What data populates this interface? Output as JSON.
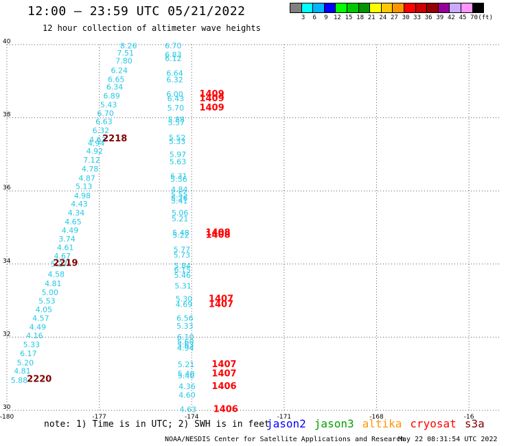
{
  "header": {
    "title": "12:00 – 23:59 UTC 05/21/2022",
    "subtitle": "12 hour collection of altimeter wave heights"
  },
  "colorbar": {
    "colors": [
      "#808080",
      "#00ffff",
      "#00b4ff",
      "#0000ff",
      "#00ff00",
      "#00c800",
      "#009600",
      "#ffff00",
      "#ffc800",
      "#ff9600",
      "#ff0000",
      "#c80000",
      "#960000",
      "#960096",
      "#c8aaff",
      "#ff96ff",
      "#000000"
    ],
    "labels": [
      "3",
      "6",
      "9",
      "12",
      "15",
      "18",
      "21",
      "24",
      "27",
      "30",
      "33",
      "36",
      "39",
      "42",
      "45",
      "70",
      "(ft)"
    ]
  },
  "chart_data": {
    "type": "scatter",
    "x_ticks": [
      "-180",
      "-177",
      "-174",
      "-171",
      "-168",
      "-16"
    ],
    "y_ticks": [
      "40",
      "38",
      "36",
      "34",
      "32",
      "30"
    ],
    "xlim": [
      -180,
      -164
    ],
    "ylim": [
      30,
      40
    ],
    "wave_color": "#22c8e6",
    "track1": [
      {
        "lon": -176.05,
        "lat": 39.9,
        "v": "8.26"
      },
      {
        "lon": -176.15,
        "lat": 39.7,
        "v": "7.51"
      },
      {
        "lon": -176.2,
        "lat": 39.48,
        "v": "7.80"
      },
      {
        "lon": -176.35,
        "lat": 39.22,
        "v": "6.24"
      },
      {
        "lon": -176.45,
        "lat": 38.98,
        "v": "6.65"
      },
      {
        "lon": -176.5,
        "lat": 38.77,
        "v": "6.34"
      },
      {
        "lon": -176.6,
        "lat": 38.53,
        "v": "6.89"
      },
      {
        "lon": -176.7,
        "lat": 38.28,
        "v": "5.43"
      },
      {
        "lon": -176.8,
        "lat": 38.05,
        "v": "6.70"
      },
      {
        "lon": -176.85,
        "lat": 37.82,
        "v": "6.63"
      },
      {
        "lon": -176.95,
        "lat": 37.58,
        "v": "6.32"
      },
      {
        "lon": -177.05,
        "lat": 37.33,
        "v": "4.63"
      },
      {
        "lon": -177.1,
        "lat": 37.23,
        "v": "4.94"
      },
      {
        "lon": -177.15,
        "lat": 37.02,
        "v": "4.92"
      },
      {
        "lon": -177.25,
        "lat": 36.77,
        "v": "7.12"
      },
      {
        "lon": -177.3,
        "lat": 36.53,
        "v": "4.78"
      },
      {
        "lon": -177.4,
        "lat": 36.28,
        "v": "4.87"
      },
      {
        "lon": -177.5,
        "lat": 36.05,
        "v": "5.13"
      },
      {
        "lon": -177.55,
        "lat": 35.8,
        "v": "4.98"
      },
      {
        "lon": -177.65,
        "lat": 35.57,
        "v": "4.43"
      },
      {
        "lon": -177.75,
        "lat": 35.33,
        "v": "4.34"
      },
      {
        "lon": -177.85,
        "lat": 35.08,
        "v": "4.65"
      },
      {
        "lon": -177.95,
        "lat": 34.85,
        "v": "4.49"
      },
      {
        "lon": -178.05,
        "lat": 34.62,
        "v": "3.74"
      },
      {
        "lon": -178.1,
        "lat": 34.38,
        "v": "4.61"
      },
      {
        "lon": -178.2,
        "lat": 34.15,
        "v": "4.67"
      },
      {
        "lon": -178.3,
        "lat": 33.93,
        "v": "5.27"
      },
      {
        "lon": -178.4,
        "lat": 33.65,
        "v": "4.58"
      },
      {
        "lon": -178.5,
        "lat": 33.4,
        "v": "4.81"
      },
      {
        "lon": -178.6,
        "lat": 33.15,
        "v": "5.00"
      },
      {
        "lon": -178.7,
        "lat": 32.92,
        "v": "5.53"
      },
      {
        "lon": -178.8,
        "lat": 32.68,
        "v": "4.05"
      },
      {
        "lon": -178.9,
        "lat": 32.45,
        "v": "4.57"
      },
      {
        "lon": -179.0,
        "lat": 32.2,
        "v": "4.49"
      },
      {
        "lon": -179.1,
        "lat": 31.97,
        "v": "4.16"
      },
      {
        "lon": -179.2,
        "lat": 31.73,
        "v": "5.33"
      },
      {
        "lon": -179.3,
        "lat": 31.48,
        "v": "6.17"
      },
      {
        "lon": -179.4,
        "lat": 31.23,
        "v": "5.20"
      },
      {
        "lon": -179.5,
        "lat": 31.0,
        "v": "4.81"
      },
      {
        "lon": -179.6,
        "lat": 30.75,
        "v": "5.88"
      }
    ],
    "track2": [
      {
        "lon": -174.6,
        "lat": 39.9,
        "v": "6.70"
      },
      {
        "lon": -174.6,
        "lat": 39.65,
        "v": "6.83"
      },
      {
        "lon": -174.6,
        "lat": 39.55,
        "v": "6.12"
      },
      {
        "lon": -174.55,
        "lat": 39.15,
        "v": "6.64"
      },
      {
        "lon": -174.55,
        "lat": 38.97,
        "v": "6.32"
      },
      {
        "lon": -174.55,
        "lat": 38.57,
        "v": "6.00"
      },
      {
        "lon": -174.52,
        "lat": 38.45,
        "v": "6.43"
      },
      {
        "lon": -174.52,
        "lat": 38.2,
        "v": "5.70"
      },
      {
        "lon": -174.5,
        "lat": 37.88,
        "v": "5.88"
      },
      {
        "lon": -174.5,
        "lat": 37.8,
        "v": "5.57"
      },
      {
        "lon": -174.47,
        "lat": 37.38,
        "v": "5.52"
      },
      {
        "lon": -174.47,
        "lat": 37.28,
        "v": "5.33"
      },
      {
        "lon": -174.45,
        "lat": 36.92,
        "v": "5.97"
      },
      {
        "lon": -174.45,
        "lat": 36.73,
        "v": "5.63"
      },
      {
        "lon": -174.42,
        "lat": 36.33,
        "v": "6.31"
      },
      {
        "lon": -174.42,
        "lat": 36.25,
        "v": "5.56"
      },
      {
        "lon": -174.4,
        "lat": 35.97,
        "v": "4.84"
      },
      {
        "lon": -174.4,
        "lat": 35.83,
        "v": "5.55"
      },
      {
        "lon": -174.4,
        "lat": 35.73,
        "v": "5.26"
      },
      {
        "lon": -174.4,
        "lat": 35.66,
        "v": "5.41"
      },
      {
        "lon": -174.38,
        "lat": 35.33,
        "v": "5.06"
      },
      {
        "lon": -174.38,
        "lat": 35.17,
        "v": "5.21"
      },
      {
        "lon": -174.35,
        "lat": 34.78,
        "v": "5.48"
      },
      {
        "lon": -174.35,
        "lat": 34.72,
        "v": "5.22"
      },
      {
        "lon": -174.32,
        "lat": 34.32,
        "v": "5.77"
      },
      {
        "lon": -174.32,
        "lat": 34.17,
        "v": "5.73"
      },
      {
        "lon": -174.3,
        "lat": 33.88,
        "v": "5.84"
      },
      {
        "lon": -174.3,
        "lat": 33.77,
        "v": "6.15"
      },
      {
        "lon": -174.3,
        "lat": 33.62,
        "v": "5.46"
      },
      {
        "lon": -174.28,
        "lat": 33.33,
        "v": "5.31"
      },
      {
        "lon": -174.25,
        "lat": 32.97,
        "v": "5.30"
      },
      {
        "lon": -174.25,
        "lat": 32.82,
        "v": "4.69"
      },
      {
        "lon": -174.22,
        "lat": 32.45,
        "v": "6.56"
      },
      {
        "lon": -174.22,
        "lat": 32.23,
        "v": "5.33"
      },
      {
        "lon": -174.2,
        "lat": 31.93,
        "v": "6.10"
      },
      {
        "lon": -174.2,
        "lat": 31.8,
        "v": "5.60"
      },
      {
        "lon": -174.2,
        "lat": 31.72,
        "v": "5.63"
      },
      {
        "lon": -174.2,
        "lat": 31.63,
        "v": "4.94"
      },
      {
        "lon": -174.18,
        "lat": 31.18,
        "v": "5.21"
      },
      {
        "lon": -174.18,
        "lat": 30.93,
        "v": "5.40"
      },
      {
        "lon": -174.18,
        "lat": 30.87,
        "v": "5.40"
      },
      {
        "lon": -174.15,
        "lat": 30.58,
        "v": "4.36"
      },
      {
        "lon": -174.15,
        "lat": 30.35,
        "v": "4.60"
      },
      {
        "lon": -174.12,
        "lat": 29.95,
        "v": "4.63"
      }
    ],
    "time_labels": [
      {
        "lon": -176.9,
        "lat": 37.35,
        "t": "2218",
        "color": "#800000"
      },
      {
        "lon": -178.5,
        "lat": 33.95,
        "t": "2219",
        "color": "#800000"
      },
      {
        "lon": -179.35,
        "lat": 30.78,
        "t": "2220",
        "color": "#800000"
      },
      {
        "lon": -173.75,
        "lat": 38.57,
        "t": "1409",
        "color": "#ff0000"
      },
      {
        "lon": -173.75,
        "lat": 38.45,
        "t": "1409",
        "color": "#ff0000"
      },
      {
        "lon": -173.75,
        "lat": 38.2,
        "t": "1409",
        "color": "#ff0000"
      },
      {
        "lon": -173.55,
        "lat": 34.78,
        "t": "1408",
        "color": "#ff0000"
      },
      {
        "lon": -173.55,
        "lat": 34.72,
        "t": "1408",
        "color": "#ff0000"
      },
      {
        "lon": -173.45,
        "lat": 32.97,
        "t": "1407",
        "color": "#ff0000"
      },
      {
        "lon": -173.45,
        "lat": 32.82,
        "t": "1407",
        "color": "#ff0000"
      },
      {
        "lon": -173.35,
        "lat": 31.18,
        "t": "1407",
        "color": "#ff0000"
      },
      {
        "lon": -173.35,
        "lat": 30.93,
        "t": "1407",
        "color": "#ff0000"
      },
      {
        "lon": -173.35,
        "lat": 30.58,
        "t": "1406",
        "color": "#ff0000"
      },
      {
        "lon": -173.3,
        "lat": 29.95,
        "t": "1406",
        "color": "#ff0000"
      }
    ]
  },
  "note": "note: 1) Time is in UTC; 2) SWH is in feet",
  "legend": {
    "items": [
      {
        "label": "jason2",
        "color": "#0000ff"
      },
      {
        "label": "jason3",
        "color": "#00a000"
      },
      {
        "label": "altika",
        "color": "#ff9600"
      },
      {
        "label": "cryosat",
        "color": "#ff0000"
      },
      {
        "label": "s3a",
        "color": "#800000"
      }
    ]
  },
  "footer": {
    "credit": "NOAA/NESDIS Center for Satellite Applications and Research",
    "timestamp": "May 22 08:31:54 UTC 2022"
  }
}
